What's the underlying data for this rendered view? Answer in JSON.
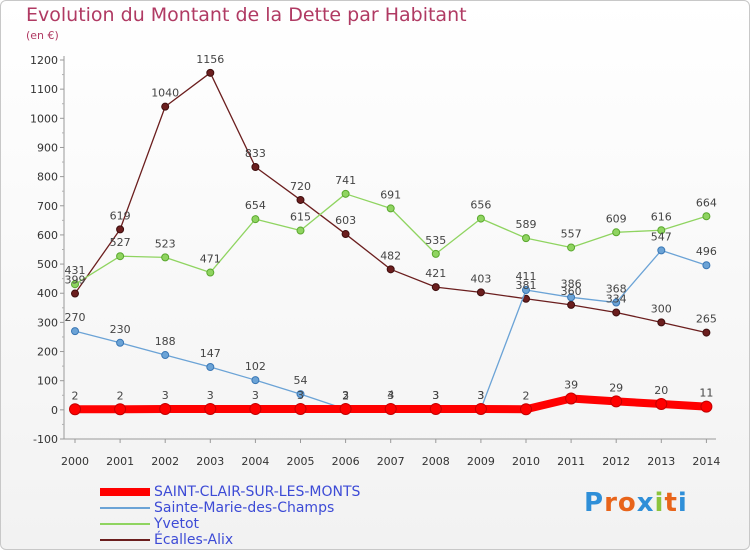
{
  "title": "Evolution du Montant de la Dette par Habitant",
  "subtitle": "(en €)",
  "logo": {
    "text": "Proxiti",
    "letters": [
      "P",
      "r",
      "o",
      "x",
      "i",
      "t",
      "i"
    ],
    "colors": [
      "#2f8fd8",
      "#e8641a",
      "#e8641a",
      "#2f8fd8",
      "#8cc43d",
      "#e8641a",
      "#2f8fd8"
    ]
  },
  "chart_data": {
    "type": "line",
    "x": [
      "2000",
      "2001",
      "2002",
      "2003",
      "2004",
      "2005",
      "2006",
      "2007",
      "2008",
      "2009",
      "2010",
      "2011",
      "2012",
      "2013",
      "2014"
    ],
    "ylim": [
      -100,
      1200
    ],
    "yticks": [
      -100,
      0,
      100,
      200,
      300,
      400,
      500,
      600,
      700,
      800,
      900,
      1000,
      1100,
      1200
    ],
    "grid": false,
    "legend_position": "bottom-left",
    "series": [
      {
        "name": "SAINT-CLAIR-SUR-LES-MONTS",
        "color": "#ff0000",
        "width": 8,
        "values": [
          2,
          2,
          3,
          3,
          3,
          3,
          3,
          3,
          3,
          3,
          2,
          39,
          29,
          20,
          11
        ]
      },
      {
        "name": "Sainte-Marie-des-Champs",
        "color": "#6ba3d6",
        "width": 1.3,
        "values": [
          270,
          230,
          188,
          147,
          102,
          54,
          2,
          4,
          3,
          3,
          411,
          386,
          368,
          547,
          496
        ]
      },
      {
        "name": "Yvetot",
        "color": "#8fd460",
        "width": 1.3,
        "values": [
          431,
          527,
          523,
          471,
          654,
          615,
          741,
          691,
          535,
          656,
          589,
          557,
          609,
          616,
          664
        ]
      },
      {
        "name": "Écalles-Alix",
        "color": "#6b1e1e",
        "width": 1.3,
        "values": [
          399,
          619,
          1040,
          1156,
          833,
          720,
          603,
          482,
          421,
          403,
          381,
          360,
          334,
          300,
          265
        ]
      }
    ],
    "data_labels": [
      {
        "series": 0,
        "labels": [
          "2",
          "2",
          "3",
          "3",
          "3",
          "3",
          "3",
          "3",
          "3",
          "3",
          "2",
          "39",
          "29",
          "20",
          "11"
        ]
      },
      {
        "series": 1,
        "labels": [
          "270",
          "230",
          "188",
          "147",
          "102",
          "54",
          "2",
          "4",
          "3",
          "3",
          "411",
          "386",
          "368",
          "547",
          "496"
        ]
      },
      {
        "series": 2,
        "labels": [
          "431",
          "527",
          "523",
          "471",
          "654",
          "615",
          "741",
          "691",
          "535",
          "656",
          "589",
          "557",
          "609",
          "616",
          "664"
        ]
      },
      {
        "series": 3,
        "labels": [
          "399",
          "619",
          "1040",
          "1156",
          "833",
          "720",
          "603",
          "482",
          "421",
          "403",
          "381",
          "360",
          "334",
          "300",
          "265"
        ]
      }
    ]
  }
}
